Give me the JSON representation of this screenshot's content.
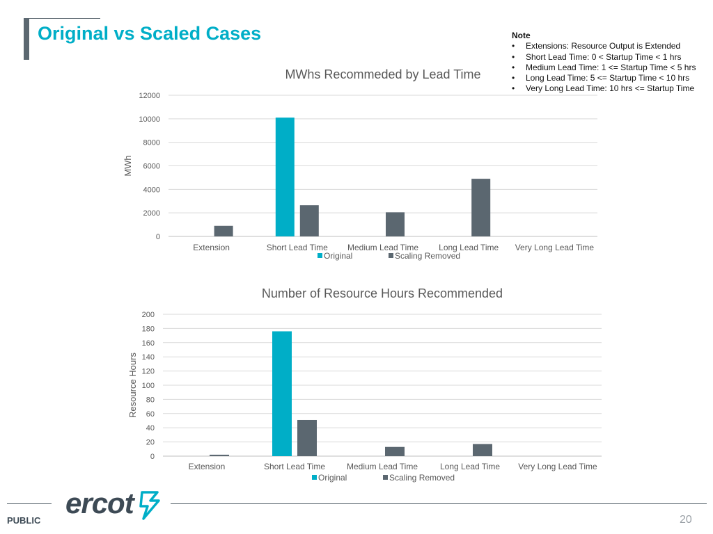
{
  "slide": {
    "title": "Original vs Scaled Cases",
    "note_heading": "Note",
    "notes": [
      "Extensions: Resource Output is Extended",
      "Short Lead Time: 0 < Startup Time < 1 hrs",
      "Medium Lead Time: 1 <= Startup Time < 5 hrs",
      "Long Lead Time: 5 <= Startup Time < 10 hrs",
      "Very Long Lead Time: 10 hrs <= Startup Time"
    ],
    "footer_label": "PUBLIC",
    "page_number": "20",
    "logo_text": "ercot"
  },
  "colors": {
    "original": "#00aec7",
    "scaling_removed": "#5b6770",
    "accent": "#00aec7",
    "grid": "#d9d9d9"
  },
  "chart_data": [
    {
      "type": "bar",
      "title": "MWhs Recommeded by Lead Time",
      "xlabel": "",
      "ylabel": "MWh",
      "categories": [
        "Extension",
        "Short Lead Time",
        "Medium Lead Time",
        "Long Lead Time",
        "Very Long Lead Time"
      ],
      "series": [
        {
          "name": "Original",
          "values": [
            0,
            10100,
            0,
            0,
            0
          ]
        },
        {
          "name": "Scaling Removed",
          "values": [
            900,
            2650,
            2050,
            4900,
            0
          ]
        }
      ],
      "ylim": [
        0,
        12000
      ],
      "yticks": [
        "0",
        "2000",
        "4000",
        "6000",
        "8000",
        "10000",
        "12000"
      ],
      "grid": true,
      "legend": "bottom"
    },
    {
      "type": "bar",
      "title": "Number of Resource Hours Recommended",
      "xlabel": "",
      "ylabel": "Resource Hours",
      "categories": [
        "Extension",
        "Short Lead Time",
        "Medium Lead Time",
        "Long Lead Time",
        "Very Long Lead Time"
      ],
      "series": [
        {
          "name": "Original",
          "values": [
            0,
            176,
            0,
            0,
            0
          ]
        },
        {
          "name": "Scaling Removed",
          "values": [
            2,
            51,
            13,
            17,
            0
          ]
        }
      ],
      "ylim": [
        0,
        200
      ],
      "yticks": [
        "0",
        "20",
        "40",
        "60",
        "80",
        "100",
        "120",
        "140",
        "160",
        "180",
        "200"
      ],
      "grid": true,
      "legend": "bottom"
    }
  ]
}
